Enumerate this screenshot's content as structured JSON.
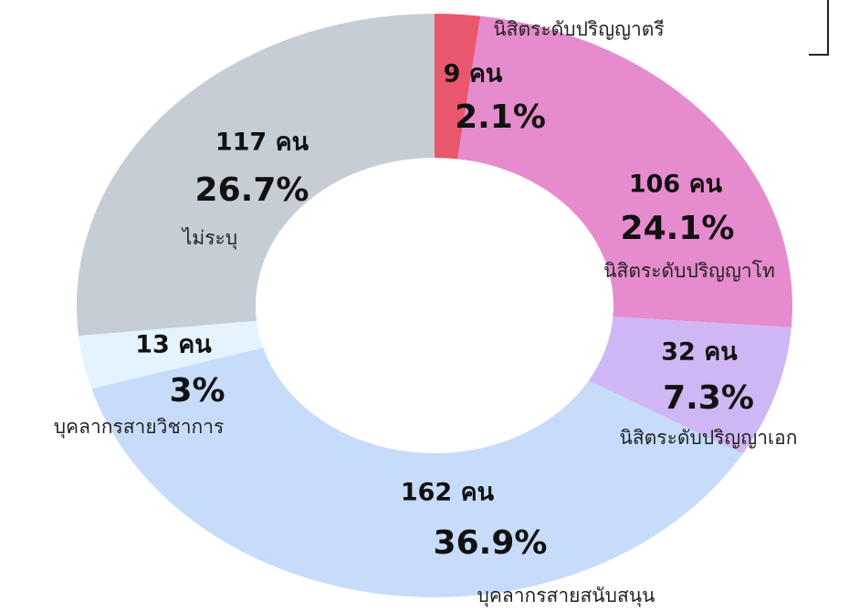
{
  "chart_data": {
    "type": "donut",
    "categories": [
      "นิสิตระดับปริญญาตรี",
      "นิสิตระดับปริญญาโท",
      "นิสิตระดับปริญญาเอก",
      "บุคลากรสายสนับสนุน",
      "บุคลากรสายวิชาการ",
      "ไม่ระบุ"
    ],
    "values": [
      9,
      106,
      32,
      162,
      13,
      117
    ],
    "value_labels": [
      "9 คน",
      "106 คน",
      "32 คน",
      "162 คน",
      "13 คน",
      "117 คน"
    ],
    "percentages": [
      2.1,
      24.1,
      7.3,
      36.9,
      3,
      26.7
    ],
    "percentage_labels": [
      "2.1%",
      "24.1%",
      "7.3%",
      "36.9%",
      "3%",
      "26.7%"
    ],
    "colors": [
      "#e9576d",
      "#e68bcd",
      "#cfb6f4",
      "#c6dcfa",
      "#e4f3fd",
      "#c5cdd5"
    ]
  }
}
